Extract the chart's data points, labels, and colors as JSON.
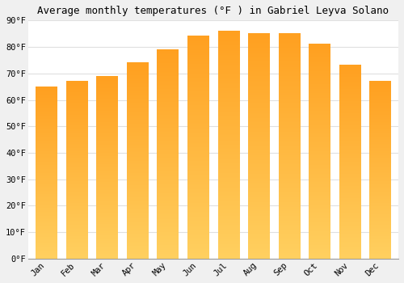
{
  "months": [
    "Jan",
    "Feb",
    "Mar",
    "Apr",
    "May",
    "Jun",
    "Jul",
    "Aug",
    "Sep",
    "Oct",
    "Nov",
    "Dec"
  ],
  "values": [
    65,
    67,
    69,
    74,
    79,
    84,
    86,
    85,
    85,
    81,
    73,
    67
  ],
  "bar_color_main": "#FFA020",
  "bar_color_light": "#FFD060",
  "title": "Average monthly temperatures (°F ) in Gabriel Leyva Solano",
  "ylim": [
    0,
    90
  ],
  "yticks": [
    0,
    10,
    20,
    30,
    40,
    50,
    60,
    70,
    80,
    90
  ],
  "ytick_labels": [
    "0°F",
    "10°F",
    "20°F",
    "30°F",
    "40°F",
    "50°F",
    "60°F",
    "70°F",
    "80°F",
    "90°F"
  ],
  "background_color": "#f0f0f0",
  "plot_bg_color": "#ffffff",
  "grid_color": "#e0e0e0",
  "title_fontsize": 9,
  "tick_fontsize": 7.5,
  "bar_width": 0.7
}
